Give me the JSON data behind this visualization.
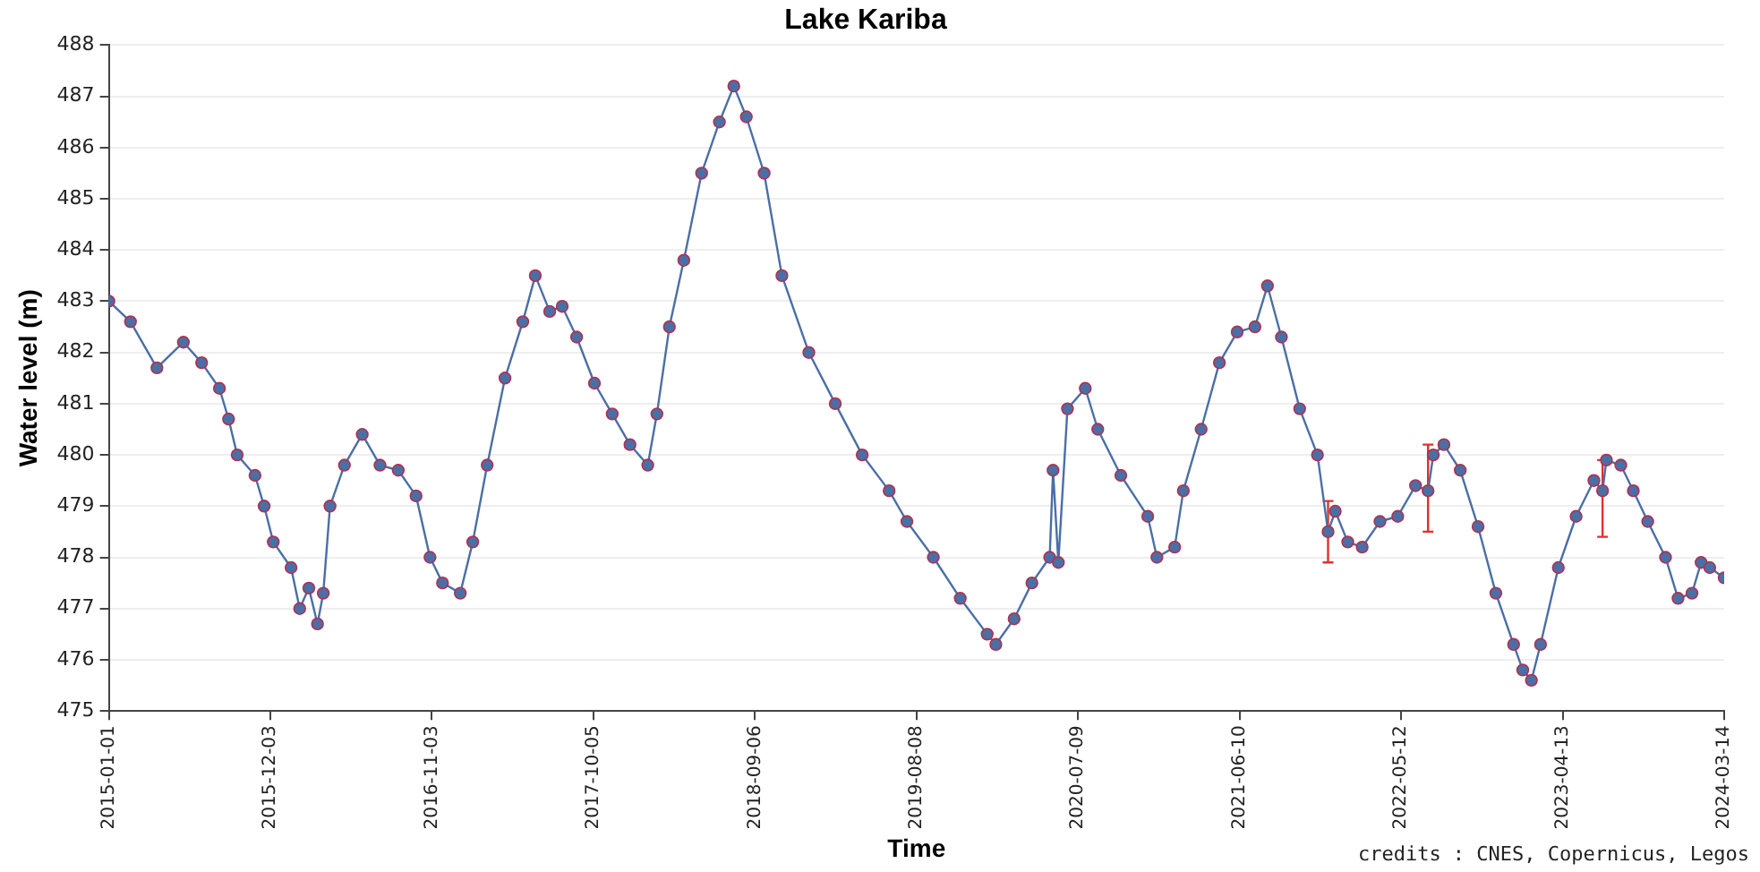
{
  "chart_data": {
    "type": "line",
    "title": "Lake Kariba",
    "xlabel": "Time",
    "ylabel": "Water level (m)",
    "annotations": [
      "credits : CNES, Copernicus, Legos"
    ],
    "x": [
      "2015-01-01",
      "2015-02-15",
      "2015-04-11",
      "2015-06-05",
      "2015-07-13",
      "2015-08-19",
      "2015-09-07",
      "2015-09-25",
      "2015-11-01",
      "2015-11-20",
      "2015-12-09",
      "2016-01-15",
      "2016-02-02",
      "2016-02-21",
      "2016-03-10",
      "2016-03-22",
      "2016-04-05",
      "2016-05-05",
      "2016-06-11",
      "2016-07-18",
      "2016-08-25",
      "2016-10-01",
      "2016-10-30",
      "2016-11-25",
      "2017-01-01",
      "2017-01-27",
      "2017-02-26",
      "2017-04-04",
      "2017-05-11",
      "2017-06-06",
      "2017-07-06",
      "2017-08-01",
      "2017-08-31",
      "2017-10-07",
      "2017-11-13",
      "2017-12-20",
      "2018-01-26",
      "2018-02-14",
      "2018-03-12",
      "2018-04-11",
      "2018-05-18",
      "2018-06-24",
      "2018-07-24",
      "2018-08-19",
      "2018-09-25",
      "2018-11-01",
      "2018-12-27",
      "2019-02-20",
      "2019-04-17",
      "2019-06-12",
      "2019-07-19",
      "2019-09-12",
      "2019-11-07",
      "2020-01-02",
      "2020-01-20",
      "2020-02-27",
      "2020-04-04",
      "2020-05-11",
      "2020-05-18",
      "2020-05-29",
      "2020-06-17",
      "2020-07-24",
      "2020-08-19",
      "2020-10-06",
      "2020-12-01",
      "2020-12-20",
      "2021-01-26",
      "2021-02-13",
      "2021-03-22",
      "2021-04-29",
      "2021-06-05",
      "2021-07-12",
      "2021-08-07",
      "2021-09-05",
      "2021-10-13",
      "2021-11-19",
      "2021-12-11",
      "2021-12-26",
      "2022-01-21",
      "2022-02-20",
      "2022-03-29",
      "2022-05-05",
      "2022-06-11",
      "2022-07-07",
      "2022-07-18",
      "2022-08-09",
      "2022-09-12",
      "2022-10-19",
      "2022-11-25",
      "2023-01-01",
      "2023-01-20",
      "2023-02-07",
      "2023-02-26",
      "2023-04-04",
      "2023-05-11",
      "2023-06-17",
      "2023-07-05",
      "2023-07-13",
      "2023-08-12",
      "2023-09-07",
      "2023-10-07",
      "2023-11-13",
      "2023-12-09",
      "2024-01-07",
      "2024-01-26",
      "2024-02-13",
      "2024-03-14"
    ],
    "series": [
      {
        "color": "#4a6fa5",
        "values": [
          483.0,
          482.6,
          481.7,
          482.2,
          481.8,
          481.3,
          480.7,
          480.0,
          479.6,
          479.0,
          478.3,
          477.8,
          477.0,
          477.4,
          476.7,
          477.3,
          479.0,
          479.8,
          480.4,
          479.8,
          479.7,
          479.2,
          478.0,
          477.5,
          477.3,
          478.3,
          479.8,
          481.5,
          482.6,
          483.5,
          482.8,
          482.9,
          482.3,
          481.4,
          480.8,
          480.2,
          479.8,
          480.8,
          482.5,
          483.8,
          485.5,
          486.5,
          487.2,
          486.6,
          485.5,
          483.5,
          482.0,
          481.0,
          480.0,
          479.3,
          478.7,
          478.0,
          477.2,
          476.5,
          476.3,
          476.8,
          477.5,
          478.0,
          479.7,
          477.9,
          480.9,
          481.3,
          480.5,
          479.6,
          478.8,
          478.0,
          478.2,
          479.3,
          480.5,
          481.8,
          482.4,
          482.5,
          483.3,
          482.3,
          480.9,
          480.0,
          478.5,
          478.9,
          478.3,
          478.2,
          478.7,
          478.8,
          479.4,
          479.3,
          480.0,
          480.2,
          479.7,
          478.6,
          477.3,
          476.3,
          475.8,
          475.6,
          476.3,
          477.8,
          478.8,
          479.5,
          479.3,
          479.9,
          479.8,
          479.3,
          478.7,
          478.0,
          477.2,
          477.3,
          477.9,
          477.8,
          477.6
        ],
        "errors": [
          null,
          null,
          null,
          null,
          null,
          null,
          null,
          null,
          null,
          null,
          null,
          null,
          null,
          null,
          null,
          null,
          null,
          null,
          null,
          null,
          null,
          null,
          null,
          null,
          null,
          null,
          null,
          null,
          null,
          null,
          null,
          null,
          null,
          null,
          null,
          null,
          null,
          null,
          null,
          null,
          null,
          null,
          null,
          null,
          null,
          null,
          null,
          null,
          null,
          null,
          null,
          null,
          null,
          null,
          null,
          null,
          null,
          null,
          null,
          null,
          null,
          null,
          null,
          null,
          null,
          null,
          null,
          null,
          null,
          null,
          null,
          null,
          null,
          null,
          null,
          null,
          [
            477.9,
            479.1
          ],
          null,
          null,
          null,
          null,
          null,
          null,
          [
            478.5,
            480.2
          ],
          null,
          null,
          null,
          null,
          null,
          null,
          null,
          null,
          null,
          null,
          null,
          null,
          [
            478.4,
            479.9
          ],
          null,
          null,
          null,
          null,
          null,
          null,
          null,
          null,
          null,
          null
        ]
      }
    ],
    "xlim": [
      "2015-01-01",
      "2024-03-14"
    ],
    "xticks": [
      "2015-01-01",
      "2015-12-03",
      "2016-11-03",
      "2017-10-05",
      "2018-09-06",
      "2019-08-08",
      "2020-07-09",
      "2021-06-10",
      "2022-05-12",
      "2023-04-13",
      "2024-03-14"
    ],
    "ylim": [
      475,
      488
    ],
    "yticks": [
      475,
      476,
      477,
      478,
      479,
      480,
      481,
      482,
      483,
      484,
      485,
      486,
      487,
      488
    ],
    "grid": "y",
    "legend": false,
    "marker": "circle",
    "line_style": "solid"
  }
}
